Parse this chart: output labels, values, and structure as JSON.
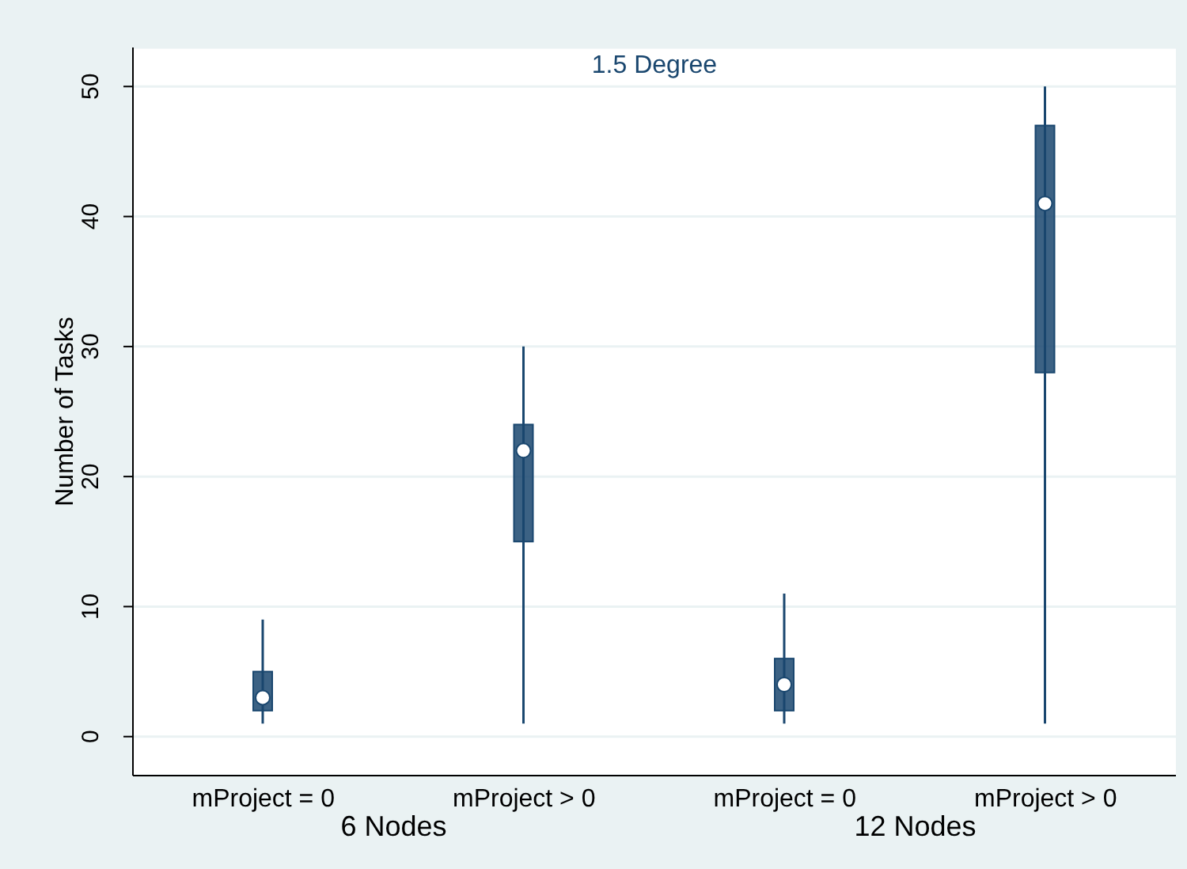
{
  "chart_data": {
    "type": "box",
    "title": "1.5 Degree",
    "ylabel": "Number of Tasks",
    "categories": [
      "mProject = 0",
      "mProject > 0",
      "mProject = 0",
      "mProject > 0"
    ],
    "series": [
      {
        "color": "#1a476f",
        "boxes": [
          {
            "low": 1,
            "q1": 2,
            "median": 3,
            "q3": 5,
            "high": 9
          },
          {
            "low": 1,
            "q1": 15,
            "median": 22,
            "q3": 24,
            "high": 30
          },
          {
            "low": 1,
            "q1": 2,
            "median": 4,
            "q3": 6,
            "high": 11
          },
          {
            "low": 1,
            "q1": 28,
            "median": 41,
            "q3": 47,
            "high": 50
          }
        ]
      }
    ],
    "annotations": [
      "6 Nodes",
      "12 Nodes"
    ],
    "ylim": [
      -3,
      53
    ],
    "yticks": [
      0,
      10,
      20,
      30,
      40,
      50
    ],
    "grid": "y"
  }
}
